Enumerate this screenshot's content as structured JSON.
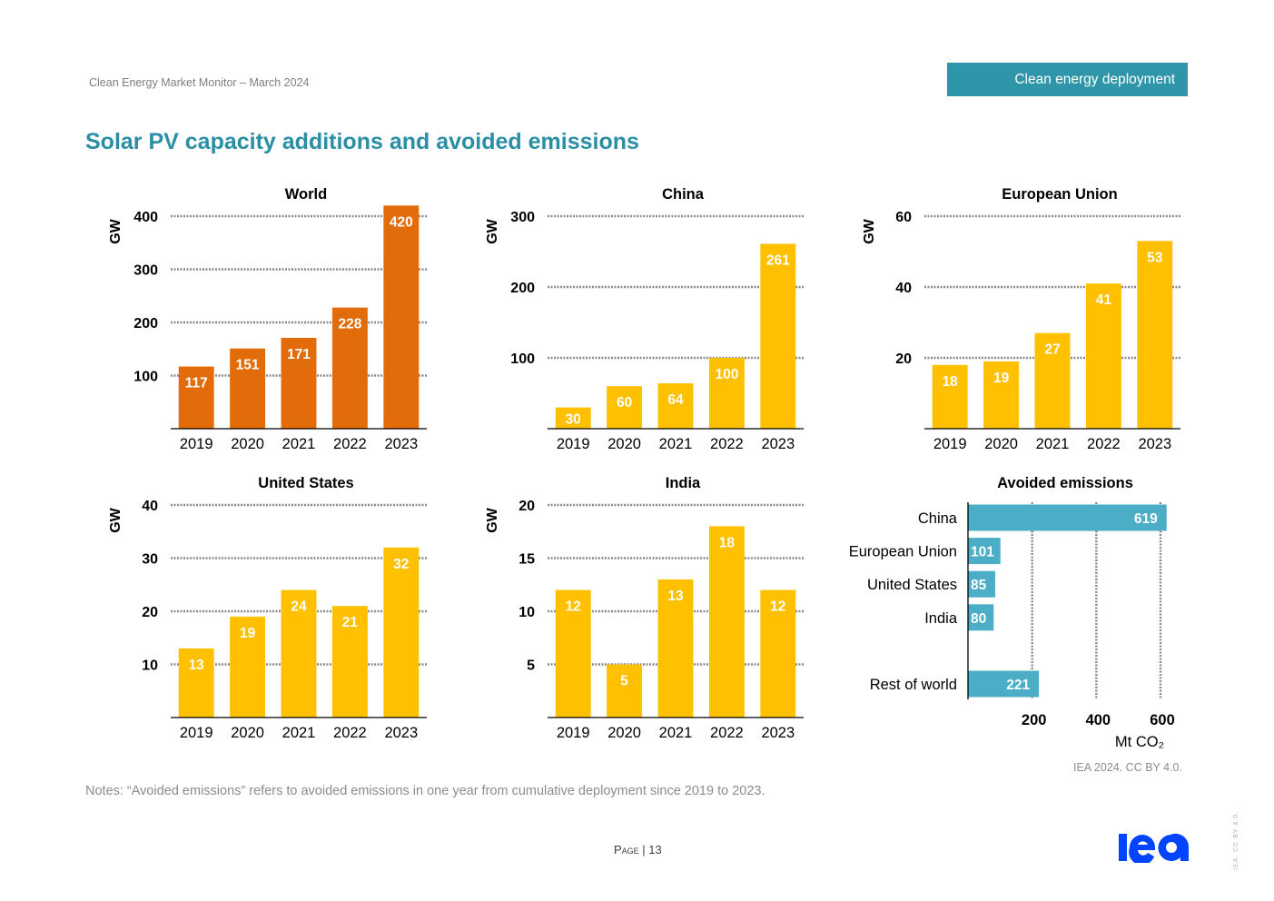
{
  "header": {
    "publication": "Clean Energy Market Monitor – March 2024",
    "section_tab": "Clean energy deployment"
  },
  "title": "Solar PV capacity additions and avoided emissions",
  "colors": {
    "world_bar": "#e36c0a",
    "country_bar": "#ffc000",
    "emissions_bar": "#4badc6",
    "title": "#2a8ea5",
    "tab_bg": "#2f96aa",
    "logo": "#0044ff"
  },
  "chart_data": [
    {
      "type": "bar",
      "title": "World",
      "ylabel": "GW",
      "xlabel": "",
      "categories": [
        "2019",
        "2020",
        "2021",
        "2022",
        "2023"
      ],
      "values": [
        117,
        151,
        171,
        228,
        420
      ],
      "labels": [
        "117",
        "151",
        "171",
        "228",
        "420"
      ],
      "yticks": [
        100,
        200,
        300,
        400
      ],
      "ylim": [
        0,
        400
      ],
      "grid": true,
      "color_key": "world_bar"
    },
    {
      "type": "bar",
      "title": "China",
      "ylabel": "GW",
      "xlabel": "",
      "categories": [
        "2019",
        "2020",
        "2021",
        "2022",
        "2023"
      ],
      "values": [
        30,
        60,
        64,
        100,
        261
      ],
      "labels": [
        "30",
        "60",
        "64",
        "100",
        "261"
      ],
      "yticks": [
        100,
        200,
        300
      ],
      "ylim": [
        0,
        300
      ],
      "grid": true,
      "color_key": "country_bar"
    },
    {
      "type": "bar",
      "title": "European Union",
      "ylabel": "GW",
      "xlabel": "",
      "categories": [
        "2019",
        "2020",
        "2021",
        "2022",
        "2023"
      ],
      "values": [
        18,
        19,
        27,
        41,
        53
      ],
      "labels": [
        "18",
        "19",
        "27",
        "41",
        "53"
      ],
      "yticks": [
        20,
        40,
        60
      ],
      "ylim": [
        0,
        60
      ],
      "grid": true,
      "color_key": "country_bar"
    },
    {
      "type": "bar",
      "title": "United States",
      "ylabel": "GW",
      "xlabel": "",
      "categories": [
        "2019",
        "2020",
        "2021",
        "2022",
        "2023"
      ],
      "values": [
        13,
        19,
        24,
        21,
        32
      ],
      "labels": [
        "13",
        "19",
        "24",
        "21",
        "32"
      ],
      "yticks": [
        10,
        20,
        30,
        40
      ],
      "ylim": [
        0,
        40
      ],
      "grid": true,
      "color_key": "country_bar"
    },
    {
      "type": "bar",
      "title": "India",
      "ylabel": "GW",
      "xlabel": "",
      "categories": [
        "2019",
        "2020",
        "2021",
        "2022",
        "2023"
      ],
      "values": [
        12,
        5,
        13,
        18,
        12
      ],
      "labels": [
        "12",
        "5",
        "13",
        "18",
        "12"
      ],
      "yticks": [
        5,
        10,
        15,
        20
      ],
      "ylim": [
        0,
        20
      ],
      "grid": true,
      "color_key": "country_bar"
    },
    {
      "type": "bar",
      "orientation": "horizontal",
      "title": "Avoided emissions",
      "xlabel": "Mt CO₂",
      "ylabel": "",
      "categories": [
        "China",
        "European Union",
        "United States",
        "India",
        "",
        "Rest of world"
      ],
      "values": [
        619,
        101,
        85,
        80,
        null,
        221
      ],
      "labels": [
        "619",
        "101",
        "85",
        "80",
        "",
        "221"
      ],
      "xticks": [
        200,
        400,
        600
      ],
      "xlim": [
        0,
        620
      ],
      "grid": true,
      "color_key": "emissions_bar"
    }
  ],
  "notes": "Notes: “Avoided emissions” refers to avoided emissions in one year from cumulative deployment since 2019 to 2023.",
  "credit": "IEA 2024. CC BY 4.0.",
  "footer": {
    "page_word": "Page",
    "page_sep": " | ",
    "page_number": "13",
    "logo_text": "iea",
    "vertical_credit": "IEA. CC BY 4.0."
  }
}
